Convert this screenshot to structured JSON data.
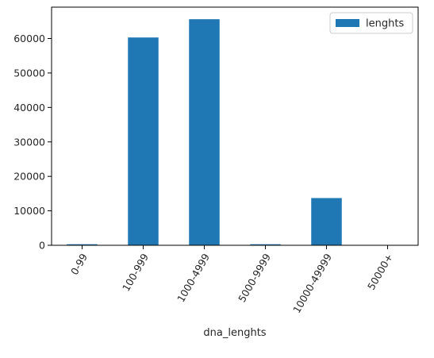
{
  "chart_data": {
    "type": "bar",
    "categories": [
      "0-99",
      "100-999",
      "1000-4999",
      "5000-9999",
      "10000-49999",
      "50000+"
    ],
    "series": [
      {
        "name": "lenghts",
        "values": [
          300,
          60300,
          65600,
          300,
          13700,
          0
        ],
        "color": "#1f77b4"
      }
    ],
    "xlabel": "dna_lenghts",
    "ylabel": "",
    "ylim": [
      0,
      69100
    ],
    "yticks": [
      0,
      10000,
      20000,
      30000,
      40000,
      50000,
      60000
    ],
    "grid": false,
    "legend": {
      "placement": "top-right"
    },
    "xtick_rotation_deg": 60
  }
}
